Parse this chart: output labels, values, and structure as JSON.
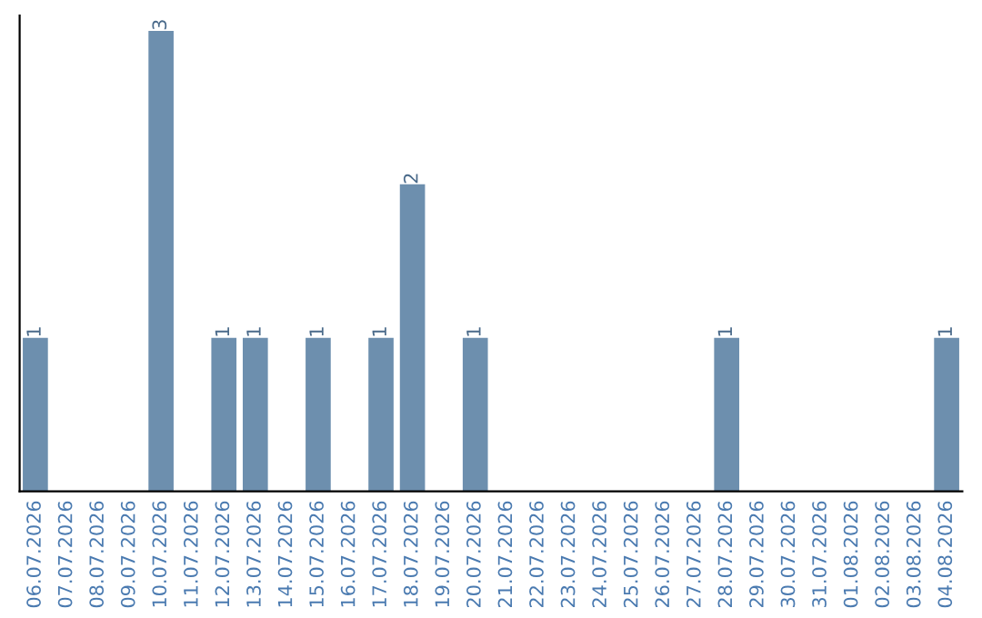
{
  "chart_data": {
    "type": "bar",
    "categories": [
      "06.07.2026",
      "07.07.2026",
      "08.07.2026",
      "09.07.2026",
      "10.07.2026",
      "11.07.2026",
      "12.07.2026",
      "13.07.2026",
      "14.07.2026",
      "15.07.2026",
      "16.07.2026",
      "17.07.2026",
      "18.07.2026",
      "19.07.2026",
      "20.07.2026",
      "21.07.2026",
      "22.07.2026",
      "23.07.2026",
      "24.07.2026",
      "25.07.2026",
      "26.07.2026",
      "27.07.2026",
      "28.07.2026",
      "29.07.2026",
      "30.07.2026",
      "31.07.2026",
      "01.08.2026",
      "02.08.2026",
      "03.08.2026",
      "04.08.2026"
    ],
    "values": [
      1,
      0,
      0,
      0,
      3,
      0,
      1,
      1,
      0,
      1,
      0,
      1,
      2,
      0,
      1,
      0,
      0,
      0,
      0,
      0,
      0,
      0,
      1,
      0,
      0,
      0,
      0,
      0,
      0,
      1
    ],
    "value_labels": [
      "1",
      null,
      null,
      null,
      "3",
      null,
      "1",
      "1",
      null,
      "1",
      null,
      "1",
      "2",
      null,
      "1",
      null,
      null,
      null,
      null,
      null,
      null,
      null,
      "1",
      null,
      null,
      null,
      null,
      null,
      null,
      "1"
    ],
    "color": "#6d8fae",
    "ylim": [
      0,
      3.1
    ],
    "tick_labels": "x",
    "grid": false,
    "legend": false
  }
}
